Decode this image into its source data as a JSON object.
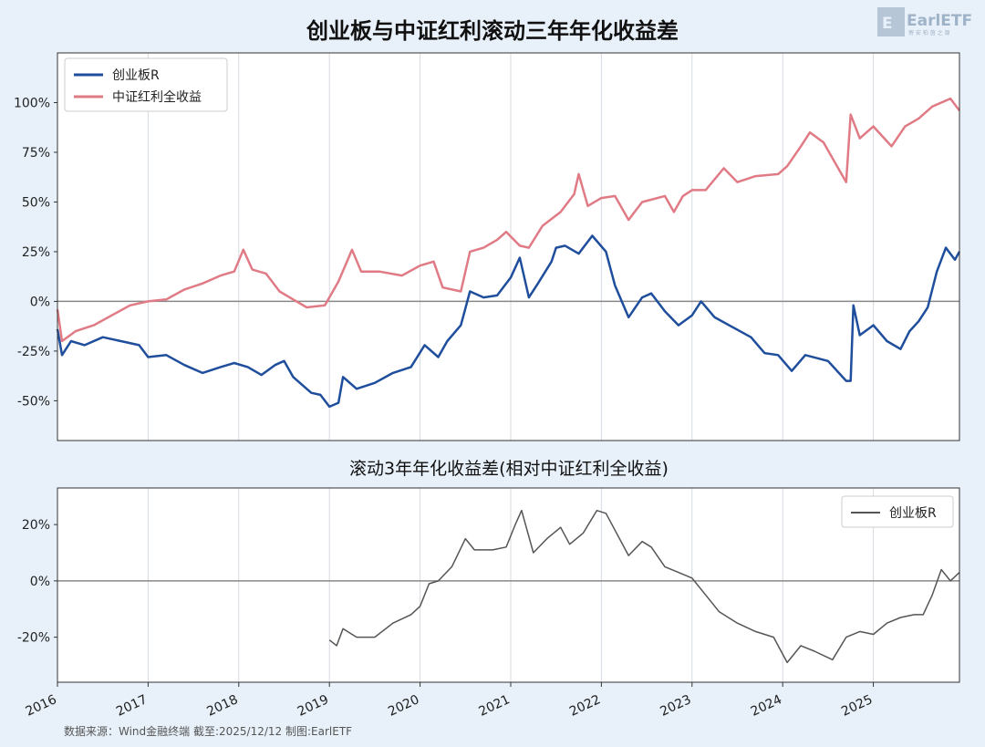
{
  "titles": {
    "main": "创业板与中证红利滚动三年年化收益差",
    "sub": "滚动3年年化收益差(相对中证红利全收益)"
  },
  "source_text": "数据来源：Wind金融终端 截至:2025/12/12 制图:EarlETF",
  "logo": {
    "text": "EarlETF",
    "subtext": "寄 安 柏 茵 之 源"
  },
  "colors": {
    "background": "#e8f1fa",
    "chinext": "#1f4e9c",
    "dividend": "#e07b86",
    "diff": "#555555",
    "zero_line": "#888888",
    "grid": "#d5dbe2"
  },
  "x_axis": {
    "labels": [
      "2016",
      "2017",
      "2018",
      "2019",
      "2020",
      "2021",
      "2022",
      "2023",
      "2024",
      "2025"
    ]
  },
  "chart_data": [
    {
      "type": "line",
      "title": "创业板与中证红利滚动三年年化收益差",
      "ylim": [
        -70,
        125
      ],
      "yticks": [
        -50,
        -25,
        0,
        25,
        50,
        75,
        100
      ],
      "ytick_labels": [
        "-50%",
        "-25%",
        "0%",
        "25%",
        "50%",
        "75%",
        "100%"
      ],
      "grid": "vertical",
      "legend": "top-left",
      "series": [
        {
          "name": "创业板R",
          "points": [
            [
              2016.0,
              -14
            ],
            [
              2016.05,
              -27
            ],
            [
              2016.15,
              -20
            ],
            [
              2016.3,
              -22
            ],
            [
              2016.5,
              -18
            ],
            [
              2016.7,
              -20
            ],
            [
              2016.9,
              -22
            ],
            [
              2017.0,
              -28
            ],
            [
              2017.2,
              -27
            ],
            [
              2017.4,
              -32
            ],
            [
              2017.6,
              -36
            ],
            [
              2017.8,
              -33
            ],
            [
              2017.95,
              -31
            ],
            [
              2018.1,
              -33
            ],
            [
              2018.25,
              -37
            ],
            [
              2018.4,
              -32
            ],
            [
              2018.5,
              -30
            ],
            [
              2018.6,
              -38
            ],
            [
              2018.8,
              -46
            ],
            [
              2018.9,
              -47
            ],
            [
              2019.0,
              -53
            ],
            [
              2019.1,
              -51
            ],
            [
              2019.15,
              -38
            ],
            [
              2019.3,
              -44
            ],
            [
              2019.5,
              -41
            ],
            [
              2019.7,
              -36
            ],
            [
              2019.9,
              -33
            ],
            [
              2020.05,
              -22
            ],
            [
              2020.2,
              -28
            ],
            [
              2020.3,
              -20
            ],
            [
              2020.45,
              -12
            ],
            [
              2020.55,
              5
            ],
            [
              2020.7,
              2
            ],
            [
              2020.85,
              3
            ],
            [
              2021.0,
              12
            ],
            [
              2021.1,
              22
            ],
            [
              2021.2,
              2
            ],
            [
              2021.3,
              9
            ],
            [
              2021.45,
              20
            ],
            [
              2021.5,
              27
            ],
            [
              2021.6,
              28
            ],
            [
              2021.75,
              24
            ],
            [
              2021.9,
              33
            ],
            [
              2022.05,
              25
            ],
            [
              2022.15,
              8
            ],
            [
              2022.3,
              -8
            ],
            [
              2022.45,
              2
            ],
            [
              2022.55,
              4
            ],
            [
              2022.7,
              -5
            ],
            [
              2022.85,
              -12
            ],
            [
              2023.0,
              -7
            ],
            [
              2023.1,
              0
            ],
            [
              2023.25,
              -8
            ],
            [
              2023.45,
              -13
            ],
            [
              2023.65,
              -18
            ],
            [
              2023.8,
              -26
            ],
            [
              2023.95,
              -27
            ],
            [
              2024.1,
              -35
            ],
            [
              2024.25,
              -27
            ],
            [
              2024.5,
              -30
            ],
            [
              2024.7,
              -40
            ],
            [
              2024.75,
              -40
            ],
            [
              2024.78,
              -2
            ],
            [
              2024.85,
              -17
            ],
            [
              2025.0,
              -12
            ],
            [
              2025.15,
              -20
            ],
            [
              2025.3,
              -24
            ],
            [
              2025.4,
              -15
            ],
            [
              2025.5,
              -10
            ],
            [
              2025.6,
              -3
            ],
            [
              2025.7,
              15
            ],
            [
              2025.8,
              27
            ],
            [
              2025.9,
              21
            ],
            [
              2025.95,
              25
            ]
          ]
        },
        {
          "name": "中证红利全收益",
          "points": [
            [
              2016.0,
              -4
            ],
            [
              2016.05,
              -20
            ],
            [
              2016.2,
              -15
            ],
            [
              2016.4,
              -12
            ],
            [
              2016.6,
              -7
            ],
            [
              2016.8,
              -2
            ],
            [
              2017.0,
              0
            ],
            [
              2017.2,
              1
            ],
            [
              2017.4,
              6
            ],
            [
              2017.6,
              9
            ],
            [
              2017.8,
              13
            ],
            [
              2017.95,
              15
            ],
            [
              2018.05,
              26
            ],
            [
              2018.15,
              16
            ],
            [
              2018.3,
              14
            ],
            [
              2018.45,
              5
            ],
            [
              2018.6,
              1
            ],
            [
              2018.75,
              -3
            ],
            [
              2018.95,
              -2
            ],
            [
              2019.1,
              10
            ],
            [
              2019.25,
              26
            ],
            [
              2019.35,
              15
            ],
            [
              2019.55,
              15
            ],
            [
              2019.8,
              13
            ],
            [
              2020.0,
              18
            ],
            [
              2020.15,
              20
            ],
            [
              2020.25,
              7
            ],
            [
              2020.45,
              5
            ],
            [
              2020.55,
              25
            ],
            [
              2020.7,
              27
            ],
            [
              2020.85,
              31
            ],
            [
              2020.95,
              35
            ],
            [
              2021.1,
              28
            ],
            [
              2021.2,
              27
            ],
            [
              2021.35,
              38
            ],
            [
              2021.55,
              45
            ],
            [
              2021.7,
              54
            ],
            [
              2021.75,
              64
            ],
            [
              2021.85,
              48
            ],
            [
              2022.0,
              52
            ],
            [
              2022.15,
              53
            ],
            [
              2022.3,
              41
            ],
            [
              2022.45,
              50
            ],
            [
              2022.7,
              53
            ],
            [
              2022.8,
              45
            ],
            [
              2022.9,
              53
            ],
            [
              2023.0,
              56
            ],
            [
              2023.15,
              56
            ],
            [
              2023.35,
              67
            ],
            [
              2023.5,
              60
            ],
            [
              2023.7,
              63
            ],
            [
              2023.95,
              64
            ],
            [
              2024.05,
              68
            ],
            [
              2024.2,
              78
            ],
            [
              2024.3,
              85
            ],
            [
              2024.45,
              80
            ],
            [
              2024.6,
              68
            ],
            [
              2024.7,
              60
            ],
            [
              2024.75,
              94
            ],
            [
              2024.85,
              82
            ],
            [
              2025.0,
              88
            ],
            [
              2025.2,
              78
            ],
            [
              2025.35,
              88
            ],
            [
              2025.5,
              92
            ],
            [
              2025.65,
              98
            ],
            [
              2025.85,
              102
            ],
            [
              2025.95,
              96
            ]
          ]
        }
      ]
    },
    {
      "type": "line",
      "title": "滚动3年年化收益差(相对中证红利全收益)",
      "ylim": [
        -36,
        33
      ],
      "yticks": [
        -20,
        0,
        20
      ],
      "ytick_labels": [
        "-20%",
        "0%",
        "20%"
      ],
      "grid": "vertical",
      "legend": "top-right",
      "series": [
        {
          "name": "创业板R",
          "points": [
            [
              2019.0,
              -21
            ],
            [
              2019.08,
              -23
            ],
            [
              2019.15,
              -17
            ],
            [
              2019.3,
              -20
            ],
            [
              2019.5,
              -20
            ],
            [
              2019.7,
              -15
            ],
            [
              2019.9,
              -12
            ],
            [
              2020.0,
              -9
            ],
            [
              2020.1,
              -1
            ],
            [
              2020.2,
              0
            ],
            [
              2020.35,
              5
            ],
            [
              2020.5,
              15
            ],
            [
              2020.6,
              11
            ],
            [
              2020.8,
              11
            ],
            [
              2020.95,
              12
            ],
            [
              2021.05,
              20
            ],
            [
              2021.12,
              25
            ],
            [
              2021.25,
              10
            ],
            [
              2021.4,
              15
            ],
            [
              2021.55,
              19
            ],
            [
              2021.65,
              13
            ],
            [
              2021.8,
              17
            ],
            [
              2021.95,
              25
            ],
            [
              2022.05,
              24
            ],
            [
              2022.15,
              18
            ],
            [
              2022.3,
              9
            ],
            [
              2022.45,
              14
            ],
            [
              2022.55,
              12
            ],
            [
              2022.7,
              5
            ],
            [
              2022.85,
              3
            ],
            [
              2023.0,
              1
            ],
            [
              2023.15,
              -5
            ],
            [
              2023.3,
              -11
            ],
            [
              2023.5,
              -15
            ],
            [
              2023.7,
              -18
            ],
            [
              2023.9,
              -20
            ],
            [
              2024.05,
              -29
            ],
            [
              2024.2,
              -23
            ],
            [
              2024.35,
              -25
            ],
            [
              2024.55,
              -28
            ],
            [
              2024.7,
              -20
            ],
            [
              2024.85,
              -18
            ],
            [
              2025.0,
              -19
            ],
            [
              2025.15,
              -15
            ],
            [
              2025.3,
              -13
            ],
            [
              2025.45,
              -12
            ],
            [
              2025.55,
              -12
            ],
            [
              2025.65,
              -5
            ],
            [
              2025.75,
              4
            ],
            [
              2025.85,
              0
            ],
            [
              2025.95,
              3
            ]
          ]
        }
      ]
    }
  ]
}
